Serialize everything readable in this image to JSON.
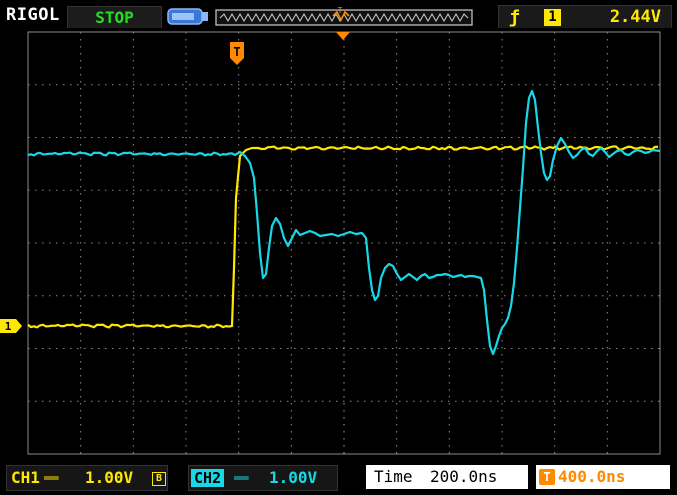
{
  "header": {
    "brand": "RIGOL",
    "run_state": "STOP",
    "trigger_slope_icon": "rising-edge-icon",
    "trigger_source": "1",
    "trigger_level": "2.44V"
  },
  "markers": {
    "trigger_marker": "T",
    "channel1_marker": "1"
  },
  "footer": {
    "ch1_label": "CH1",
    "ch1_coupling_icon": "dc-coupling-icon",
    "ch1_scale": "1.00V",
    "ch1_bw_limit": "B",
    "ch2_label": "CH2",
    "ch2_coupling_icon": "dc-coupling-icon",
    "ch2_scale": "1.00V",
    "time_label": "Time",
    "timebase": "200.0ns",
    "trigger_position": "400.0ns"
  },
  "colors": {
    "ch1": "#ffe800",
    "ch2": "#18d8e8",
    "trigger": "#ff8a00",
    "grid": "#8a8a8a",
    "run_state": "#20e020"
  },
  "waveforms": {
    "grid_divisions": {
      "horizontal": 12,
      "vertical": 8
    },
    "ch1_volts_per_div": 1.0,
    "ch2_volts_per_div": 1.0,
    "time_per_div_ns": 200.0
  }
}
